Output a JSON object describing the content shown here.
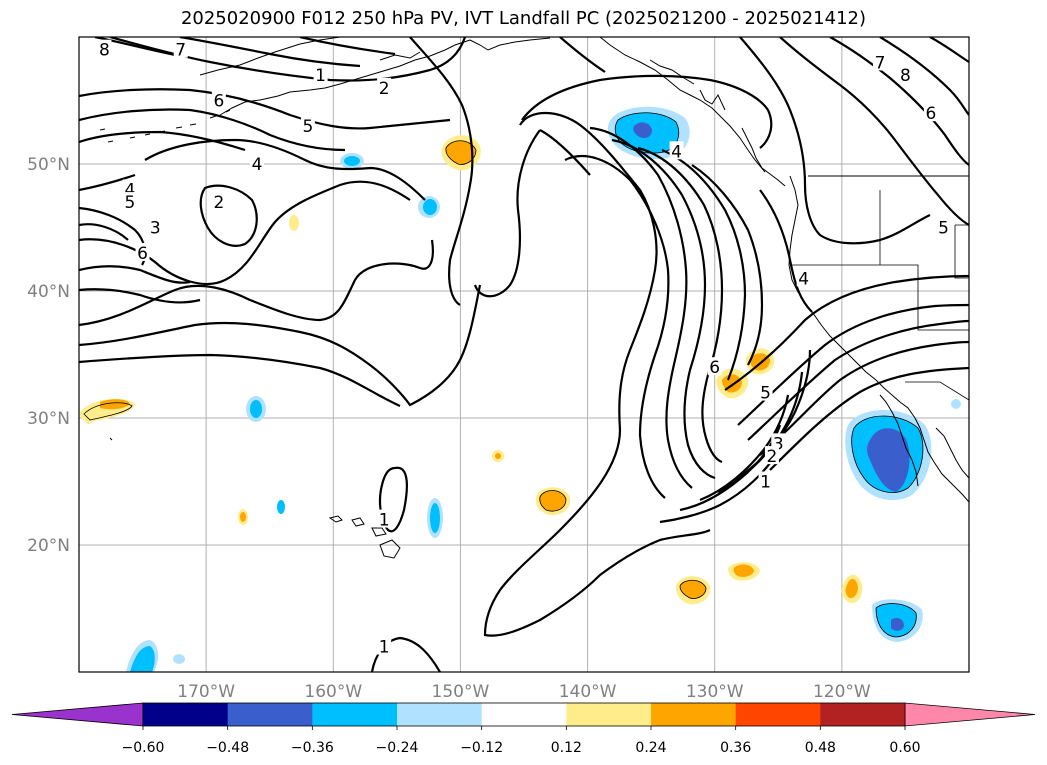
{
  "title": "2025020900 F012 250 hPa PV, IVT Landfall PC (2025021200 - 2025021412)",
  "map": {
    "lon_range": [
      -180,
      -110
    ],
    "lat_range": [
      10,
      60
    ],
    "lon_ticks": [
      "170°W",
      "160°W",
      "150°W",
      "140°W",
      "130°W",
      "120°W"
    ],
    "lat_ticks": [
      "50°N",
      "40°N",
      "30°N",
      "20°N"
    ],
    "gridlines": true
  },
  "contour_labels": [
    {
      "text": "8",
      "lon": -178,
      "lat": 59
    },
    {
      "text": "7",
      "lon": -172,
      "lat": 59
    },
    {
      "text": "1",
      "lon": -161,
      "lat": 57
    },
    {
      "text": "2",
      "lon": -156,
      "lat": 56
    },
    {
      "text": "6",
      "lon": -169,
      "lat": 55
    },
    {
      "text": "5",
      "lon": -162,
      "lat": 53
    },
    {
      "text": "4",
      "lon": -166,
      "lat": 50
    },
    {
      "text": "2",
      "lon": -169,
      "lat": 47
    },
    {
      "text": "3",
      "lon": -174,
      "lat": 45
    },
    {
      "text": "4",
      "lon": -176,
      "lat": 48
    },
    {
      "text": "5",
      "lon": -176,
      "lat": 47
    },
    {
      "text": "6",
      "lon": -175,
      "lat": 43
    },
    {
      "text": "4",
      "lon": -133,
      "lat": 51
    },
    {
      "text": "7",
      "lon": -117,
      "lat": 58
    },
    {
      "text": "8",
      "lon": -115,
      "lat": 57
    },
    {
      "text": "6",
      "lon": -113,
      "lat": 54
    },
    {
      "text": "5",
      "lon": -112,
      "lat": 45
    },
    {
      "text": "4",
      "lon": -123,
      "lat": 41
    },
    {
      "text": "6",
      "lon": -130,
      "lat": 34
    },
    {
      "text": "5",
      "lon": -126,
      "lat": 32
    },
    {
      "text": "3",
      "lon": -125,
      "lat": 28
    },
    {
      "text": "2",
      "lon": -125.5,
      "lat": 27
    },
    {
      "text": "1",
      "lon": -126,
      "lat": 25
    },
    {
      "text": "1",
      "lon": -156,
      "lat": 22
    },
    {
      "text": "1",
      "lon": -156,
      "lat": 12
    }
  ],
  "colorbar": {
    "colors": [
      "#9a32cd",
      "#00008b",
      "#3a5fcd",
      "#00bfff",
      "#b0e2ff",
      "#ffffff",
      "#ffec8b",
      "#ffa500",
      "#ff4500",
      "#b22222",
      "#ff88aa"
    ],
    "boundaries": [
      -0.6,
      -0.48,
      -0.36,
      -0.24,
      -0.12,
      0.12,
      0.24,
      0.36,
      0.48,
      0.6
    ],
    "tick_labels": [
      "−0.60",
      "−0.48",
      "−0.36",
      "−0.24",
      "−0.12",
      "0.12",
      "0.24",
      "0.36",
      "0.48",
      "0.60"
    ]
  }
}
